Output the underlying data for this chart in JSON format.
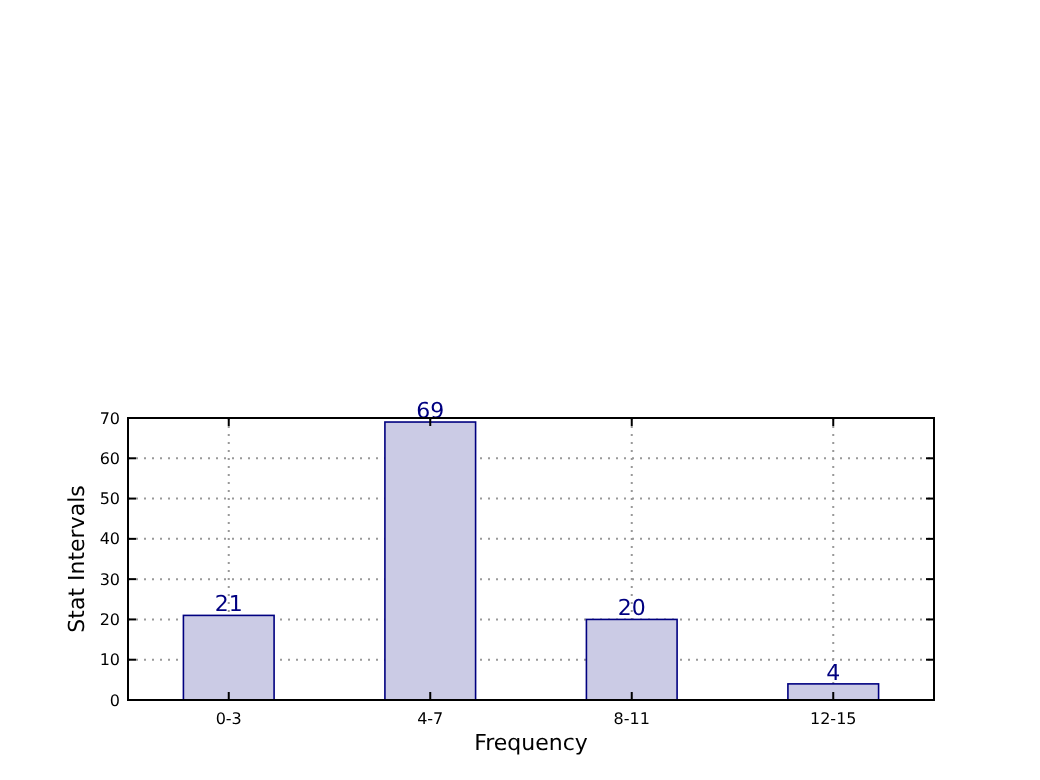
{
  "chart_data": {
    "type": "bar",
    "xlabel": "Frequency",
    "ylabel": "Stat Intervals",
    "categories": [
      "0-3",
      "4-7",
      "8-11",
      "12-15"
    ],
    "values": [
      21,
      69,
      20,
      4
    ],
    "color": "#cbcbe5",
    "data_labels": true,
    "ylim": [
      0,
      70
    ],
    "yticks": [
      0,
      10,
      20,
      30,
      40,
      50,
      60,
      70
    ],
    "grid": true
  }
}
